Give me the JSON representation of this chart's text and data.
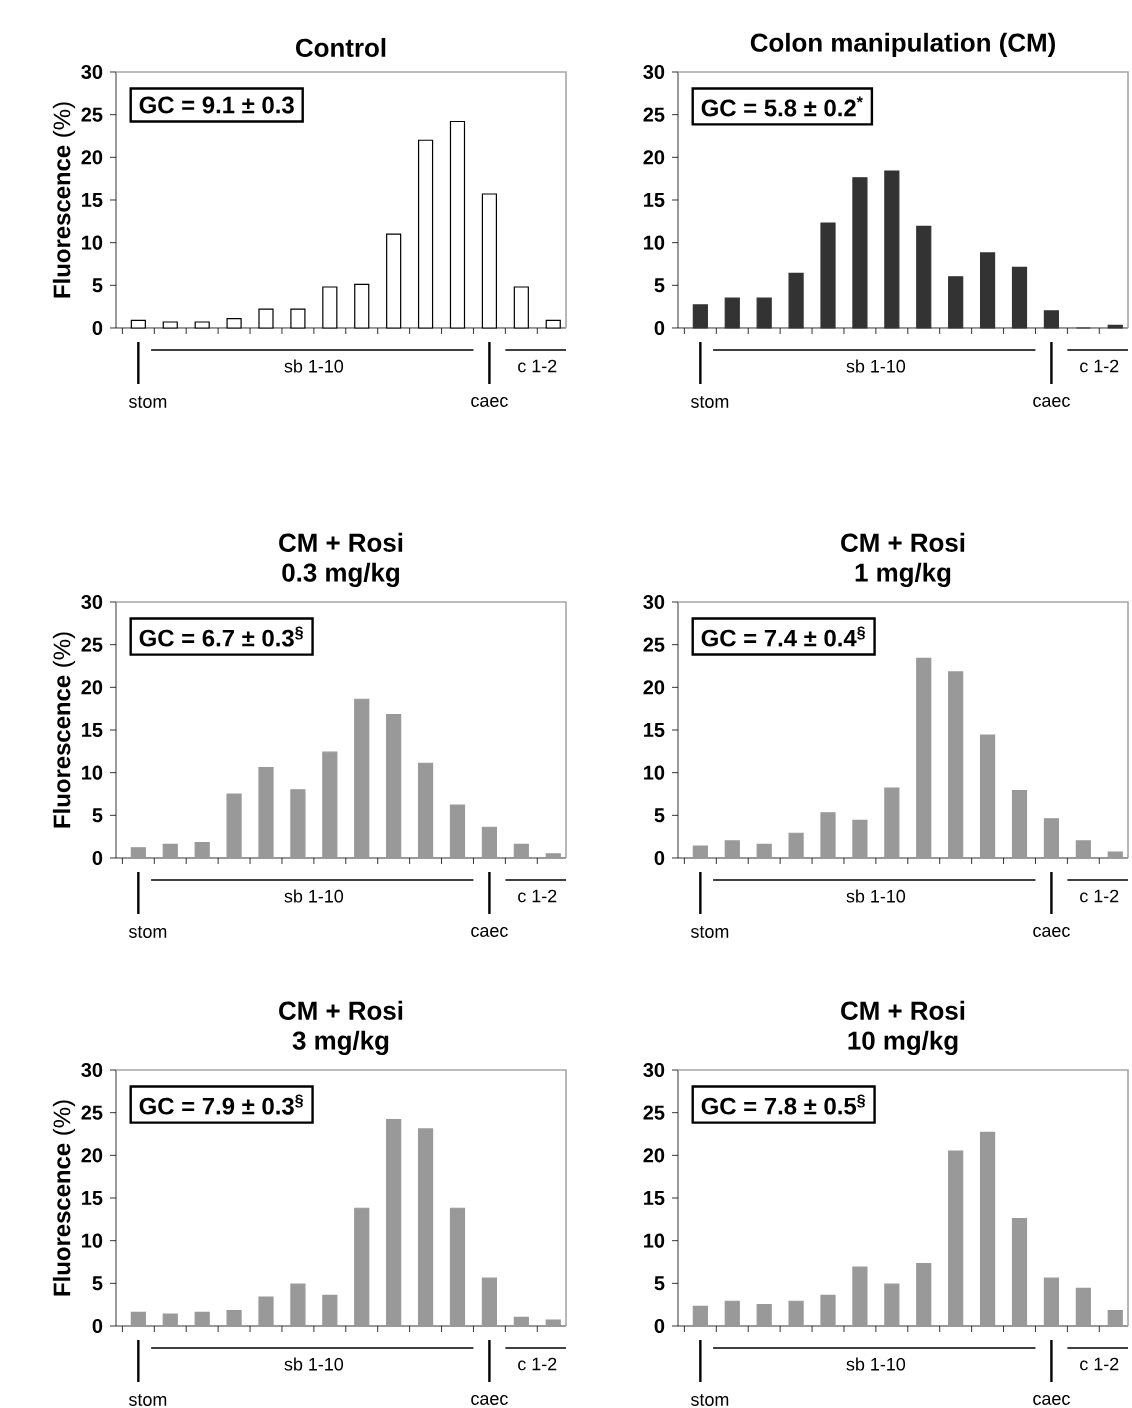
{
  "chart_data": [
    {
      "type": "bar",
      "title": "Control",
      "ylabel": "**Fluorescence** (%)",
      "categories": [
        null,
        null,
        null,
        null,
        null,
        null,
        null,
        null,
        null,
        null,
        null,
        null,
        null,
        null
      ],
      "values": [
        0.9,
        0.7,
        0.7,
        1.1,
        2.2,
        2.2,
        4.8,
        5.1,
        11,
        22,
        24.2,
        15.7,
        4.8,
        0.9
      ],
      "color": "#ffffff",
      "ylim": [
        0,
        30
      ],
      "yticks": [
        0,
        5,
        10,
        15,
        20,
        25,
        30
      ],
      "annotations": [
        "GC = 9.1 ± 0.3",
        "sb 1-10",
        "c 1-2",
        "stom",
        "caec"
      ]
    },
    {
      "type": "bar",
      "title": "Colon manipulation (CM)",
      "categories": [
        null,
        null,
        null,
        null,
        null,
        null,
        null,
        null,
        null,
        null,
        null,
        null,
        null,
        null
      ],
      "values": [
        2.7,
        3.5,
        3.5,
        6.4,
        12.3,
        17.6,
        18.4,
        11.9,
        6,
        8.8,
        7.1,
        2,
        0,
        0.3
      ],
      "color": "#333333",
      "ylim": [
        0,
        30
      ],
      "yticks": [
        0,
        5,
        10,
        15,
        20,
        25,
        30
      ],
      "annotations": [
        "GC = 5.8 ± 0.2$^{*}$",
        "sb 1-10",
        "c 1-2",
        "stom",
        "caec"
      ]
    },
    {
      "type": "bar",
      "title": "CM + Rosi",
      "subtitle": "0.3 mg/kg",
      "ylabel": "**Fluorescence** (%)",
      "categories": [
        null,
        null,
        null,
        null,
        null,
        null,
        null,
        null,
        null,
        null,
        null,
        null,
        null,
        null
      ],
      "values": [
        1.2,
        1.6,
        1.8,
        7.5,
        10.6,
        8,
        12.4,
        18.6,
        16.8,
        11.1,
        6.2,
        3.6,
        1.6,
        0.5
      ],
      "color": "#999999",
      "ylim": [
        0,
        30
      ],
      "yticks": [
        0,
        5,
        10,
        15,
        20,
        25,
        30
      ],
      "annotations": [
        "GC = 6.7 ± 0.3$^{§}$",
        "sb 1-10",
        "c 1-2",
        "stom",
        "caec"
      ]
    },
    {
      "type": "bar",
      "title": "CM + Rosi",
      "subtitle": "1 mg/kg",
      "categories": [
        null,
        null,
        null,
        null,
        null,
        null,
        null,
        null,
        null,
        null,
        null,
        null,
        null,
        null
      ],
      "values": [
        1.4,
        2,
        1.6,
        2.9,
        5.3,
        4.4,
        8.2,
        23.4,
        21.8,
        14.4,
        7.9,
        4.6,
        2,
        0.7
      ],
      "color": "#999999",
      "ylim": [
        0,
        30
      ],
      "yticks": [
        0,
        5,
        10,
        15,
        20,
        25,
        30
      ],
      "annotations": [
        "GC = 7.4 ± 0.4$^{§}$",
        "sb 1-10",
        "c 1-2",
        "stom",
        "caec"
      ]
    },
    {
      "type": "bar",
      "title": "CM + Rosi",
      "subtitle": "3 mg/kg",
      "ylabel": "**Fluorescence** (%)",
      "categories": [
        null,
        null,
        null,
        null,
        null,
        null,
        null,
        null,
        null,
        null,
        null,
        null,
        null,
        null
      ],
      "values": [
        1.6,
        1.4,
        1.6,
        1.8,
        3.4,
        4.9,
        3.6,
        13.8,
        24.2,
        23.1,
        13.8,
        5.6,
        1,
        0.7
      ],
      "color": "#999999",
      "ylim": [
        0,
        30
      ],
      "yticks": [
        0,
        5,
        10,
        15,
        20,
        25,
        30
      ],
      "annotations": [
        "GC = 7.9 ± 0.3$^{§}$",
        "sb 1-10",
        "c 1-2",
        "stom",
        "caec"
      ]
    },
    {
      "type": "bar",
      "title": "CM + Rosi",
      "subtitle": "10 mg/kg",
      "categories": [
        null,
        null,
        null,
        null,
        null,
        null,
        null,
        null,
        null,
        null,
        null,
        null,
        null,
        null
      ],
      "values": [
        2.3,
        2.9,
        2.5,
        2.9,
        3.6,
        6.9,
        4.9,
        7.3,
        20.5,
        22.7,
        12.6,
        5.6,
        4.4,
        1.8
      ],
      "color": "#999999",
      "ylim": [
        0,
        30
      ],
      "yticks": [
        0,
        5,
        10,
        15,
        20,
        25,
        30
      ],
      "annotations": [
        "GC = 7.8 ± 0.5$^{§}$",
        "sb 1-10",
        "c 1-2",
        "stom",
        "caec"
      ]
    }
  ]
}
